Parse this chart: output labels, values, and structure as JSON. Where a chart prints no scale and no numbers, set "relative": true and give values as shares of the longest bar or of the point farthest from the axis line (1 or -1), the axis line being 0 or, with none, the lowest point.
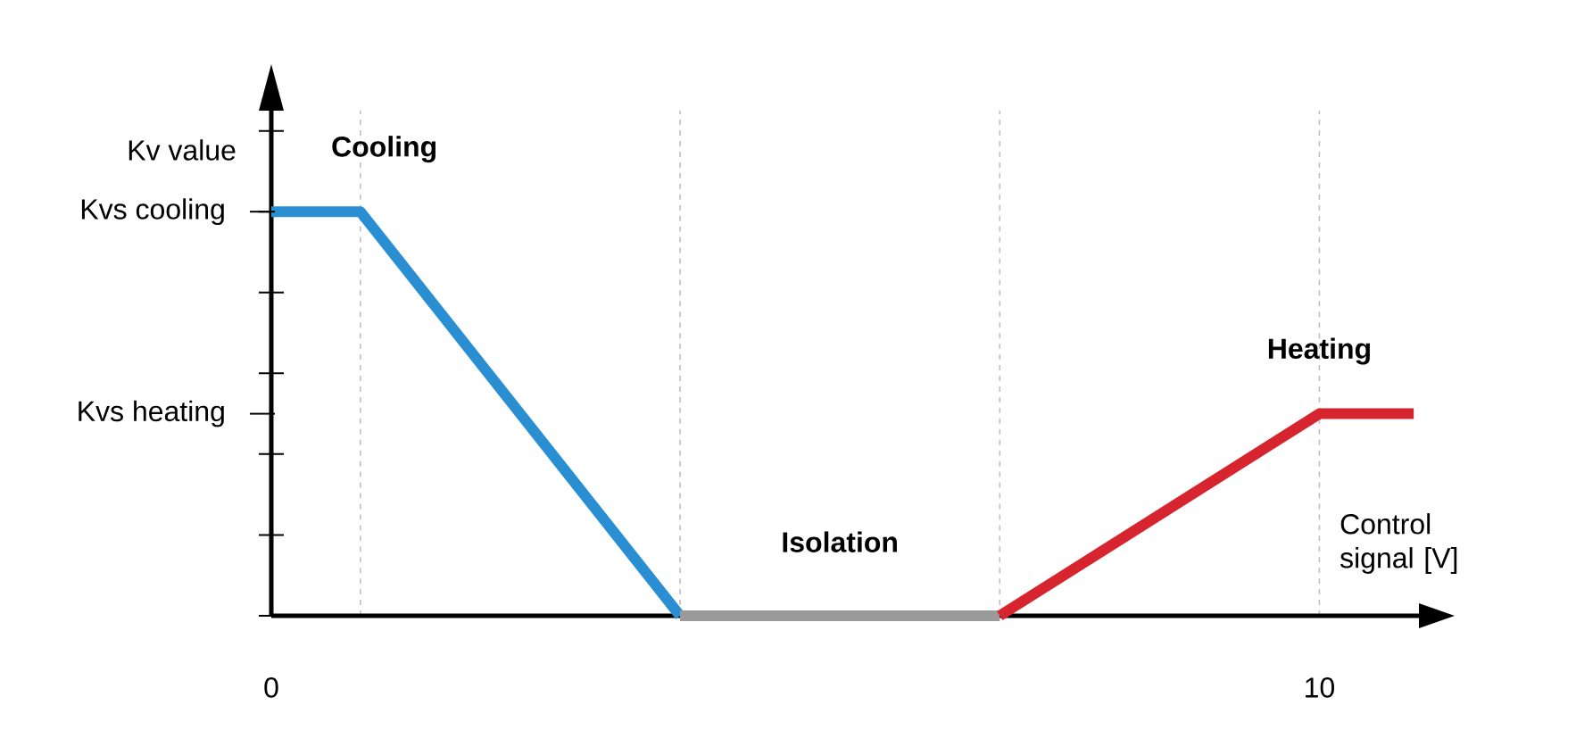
{
  "chart_data": {
    "type": "line",
    "xlabel": "Control signal [V]",
    "ylabel": "Kv value",
    "xlim": [
      0,
      10.95
    ],
    "relative": true,
    "xticks": [
      0,
      {
        "value": 0.85,
        "label": null
      },
      {
        "value": 3.9,
        "label": null
      },
      {
        "value": 6.95,
        "label": null
      },
      10
    ],
    "annotations": [
      "Kvs cooling",
      "Kvs heating"
    ],
    "grid": "x",
    "legend": false,
    "marker": "none",
    "line_style": "solid",
    "series": [
      {
        "name": "Cooling",
        "color": "#2a8fd2",
        "x": [
          0,
          0.85,
          3.9
        ],
        "values": [
          1,
          1,
          0
        ]
      },
      {
        "name": "Isolation",
        "color": "#9a9a9a",
        "x": [
          3.9,
          6.95
        ],
        "values": [
          0,
          0
        ]
      },
      {
        "name": "Heating",
        "color": "#d7252f",
        "x": [
          6.95,
          10,
          10.9
        ],
        "values": [
          0,
          0.5,
          0.5
        ]
      }
    ]
  }
}
